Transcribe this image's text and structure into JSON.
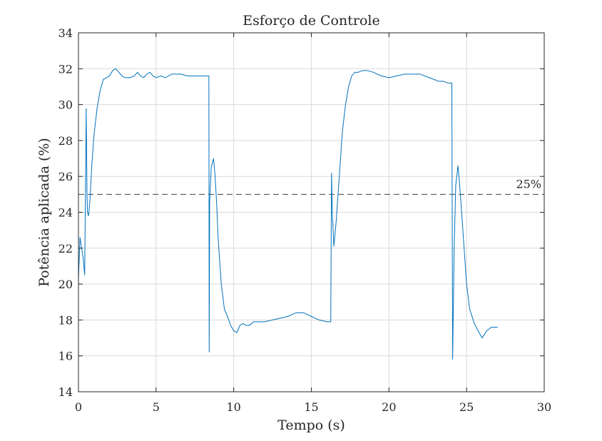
{
  "chart_data": {
    "type": "line",
    "title": "Esforço de Controle",
    "xlabel": "Tempo (s)",
    "ylabel": "Potência aplicada (%)",
    "xlim": [
      0,
      30
    ],
    "ylim": [
      14,
      34
    ],
    "xticks": [
      0,
      5,
      10,
      15,
      20,
      25,
      30
    ],
    "yticks": [
      14,
      16,
      18,
      20,
      22,
      24,
      26,
      28,
      30,
      32,
      34
    ],
    "grid": true,
    "reference_line": {
      "y": 25,
      "style": "dashed",
      "label": "25%"
    },
    "series": [
      {
        "color": "#0072bd",
        "x": [
          0,
          0.1,
          0.2,
          0.3,
          0.4,
          0.5,
          0.55,
          0.58,
          0.65,
          0.75,
          0.85,
          1.0,
          1.2,
          1.4,
          1.6,
          1.8,
          2.0,
          2.2,
          2.4,
          2.6,
          2.8,
          3.0,
          3.3,
          3.6,
          3.8,
          4.0,
          4.2,
          4.4,
          4.6,
          4.8,
          5.0,
          5.3,
          5.6,
          5.8,
          6.0,
          6.3,
          6.6,
          7.0,
          7.5,
          8.0,
          8.4,
          8.42,
          8.45,
          8.55,
          8.7,
          8.8,
          8.9,
          9.0,
          9.2,
          9.4,
          9.6,
          9.8,
          10.0,
          10.2,
          10.4,
          10.6,
          10.8,
          11.0,
          11.3,
          11.6,
          12.0,
          12.5,
          13.0,
          13.5,
          14.0,
          14.5,
          15.0,
          15.5,
          16.0,
          16.25,
          16.3,
          16.35,
          16.45,
          16.6,
          16.8,
          17.0,
          17.2,
          17.4,
          17.6,
          17.8,
          18.0,
          18.3,
          18.6,
          19.0,
          19.5,
          20.0,
          20.5,
          21.0,
          21.5,
          22.0,
          22.3,
          22.6,
          22.9,
          23.2,
          23.5,
          23.8,
          24.05,
          24.1,
          24.2,
          24.3,
          24.45,
          24.6,
          24.8,
          25.0,
          25.2,
          25.5,
          25.8,
          26.0,
          26.3,
          26.6,
          27.0
        ],
        "y": [
          20.3,
          22.6,
          22.0,
          21.5,
          20.5,
          29.8,
          25.0,
          24.0,
          23.8,
          24.8,
          26.5,
          28.3,
          29.8,
          30.8,
          31.4,
          31.5,
          31.6,
          31.9,
          32.0,
          31.8,
          31.6,
          31.5,
          31.5,
          31.6,
          31.8,
          31.6,
          31.5,
          31.7,
          31.8,
          31.6,
          31.5,
          31.6,
          31.5,
          31.6,
          31.7,
          31.7,
          31.7,
          31.6,
          31.6,
          31.6,
          31.6,
          16.2,
          24.5,
          26.5,
          27.0,
          26.0,
          24.5,
          22.5,
          20.0,
          18.6,
          18.2,
          17.7,
          17.4,
          17.3,
          17.7,
          17.8,
          17.7,
          17.7,
          17.9,
          17.9,
          17.9,
          18.0,
          18.1,
          18.2,
          18.4,
          18.4,
          18.2,
          18.0,
          17.9,
          17.9,
          26.2,
          24.0,
          22.1,
          23.5,
          26.0,
          28.5,
          30.0,
          31.0,
          31.6,
          31.8,
          31.8,
          31.9,
          31.9,
          31.8,
          31.6,
          31.5,
          31.6,
          31.7,
          31.7,
          31.7,
          31.6,
          31.5,
          31.4,
          31.3,
          31.3,
          31.2,
          31.2,
          15.8,
          22.0,
          25.5,
          26.6,
          25.0,
          22.5,
          20.0,
          18.6,
          17.8,
          17.3,
          17.0,
          17.4,
          17.6,
          17.6
        ]
      }
    ]
  }
}
